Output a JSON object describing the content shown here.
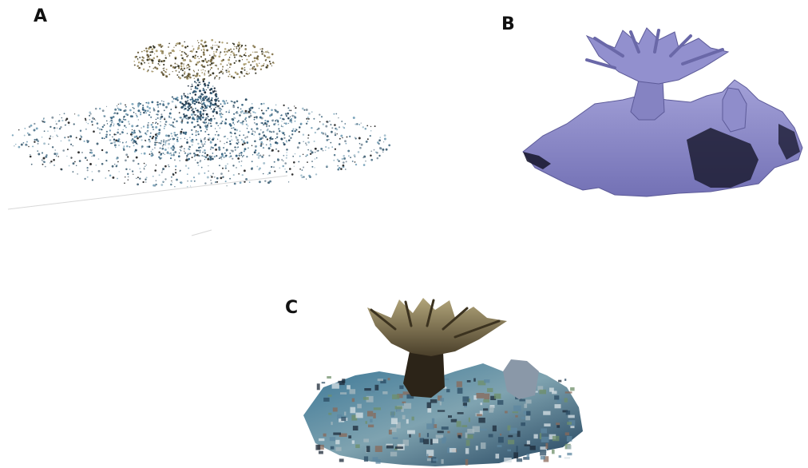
{
  "figure": {
    "panels": [
      {
        "id": "A",
        "label": "A",
        "description_icon": "point-cloud-coral"
      },
      {
        "id": "B",
        "label": "B",
        "description_icon": "mesh-model-coral"
      },
      {
        "id": "C",
        "label": "C",
        "description_icon": "textured-model-coral"
      }
    ]
  },
  "colors": {
    "mesh_lavender": "#8a88c4",
    "mesh_shadow": "#1a1a30",
    "coral_brown": "#5a4a2e",
    "coral_tan": "#9a8a5a",
    "reef_blue": "#3b6f8f",
    "point_blue": "#7fa7bd"
  }
}
